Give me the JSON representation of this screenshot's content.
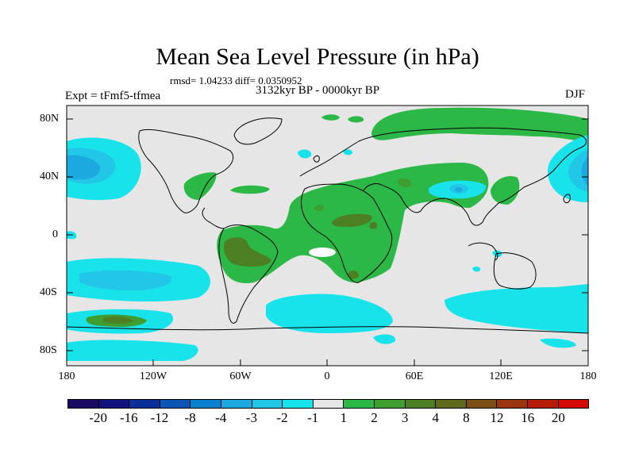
{
  "title": "Mean Sea Level Pressure (in hPa)",
  "stats": "rmsd= 1.04233 diff= 0.0350952",
  "period": "3132kyr BP - 0000kyr BP",
  "experiment": "Expt = tFmf5-tfmea",
  "season": "DJF",
  "map": {
    "lat_labels": [
      "80N",
      "40N",
      "0",
      "40S",
      "80S"
    ],
    "lon_labels": [
      "180",
      "120W",
      "60W",
      "0",
      "60E",
      "120E",
      "180"
    ]
  },
  "colorbar": {
    "labels": [
      "-20",
      "-16",
      "-12",
      "-8",
      "-4",
      "-3",
      "-2",
      "-1",
      "1",
      "2",
      "3",
      "4",
      "8",
      "12",
      "16",
      "20"
    ],
    "colors": [
      "#1a0a63",
      "#12127f",
      "#0b2f9a",
      "#0b56b4",
      "#0b80cc",
      "#1ba9df",
      "#22c6e6",
      "#19e3ea",
      "#e6e6e6",
      "#2bb846",
      "#3e9e2f",
      "#4d7f25",
      "#5f6a1c",
      "#7a4e14",
      "#98350e",
      "#b51d09",
      "#d40a06"
    ]
  }
}
